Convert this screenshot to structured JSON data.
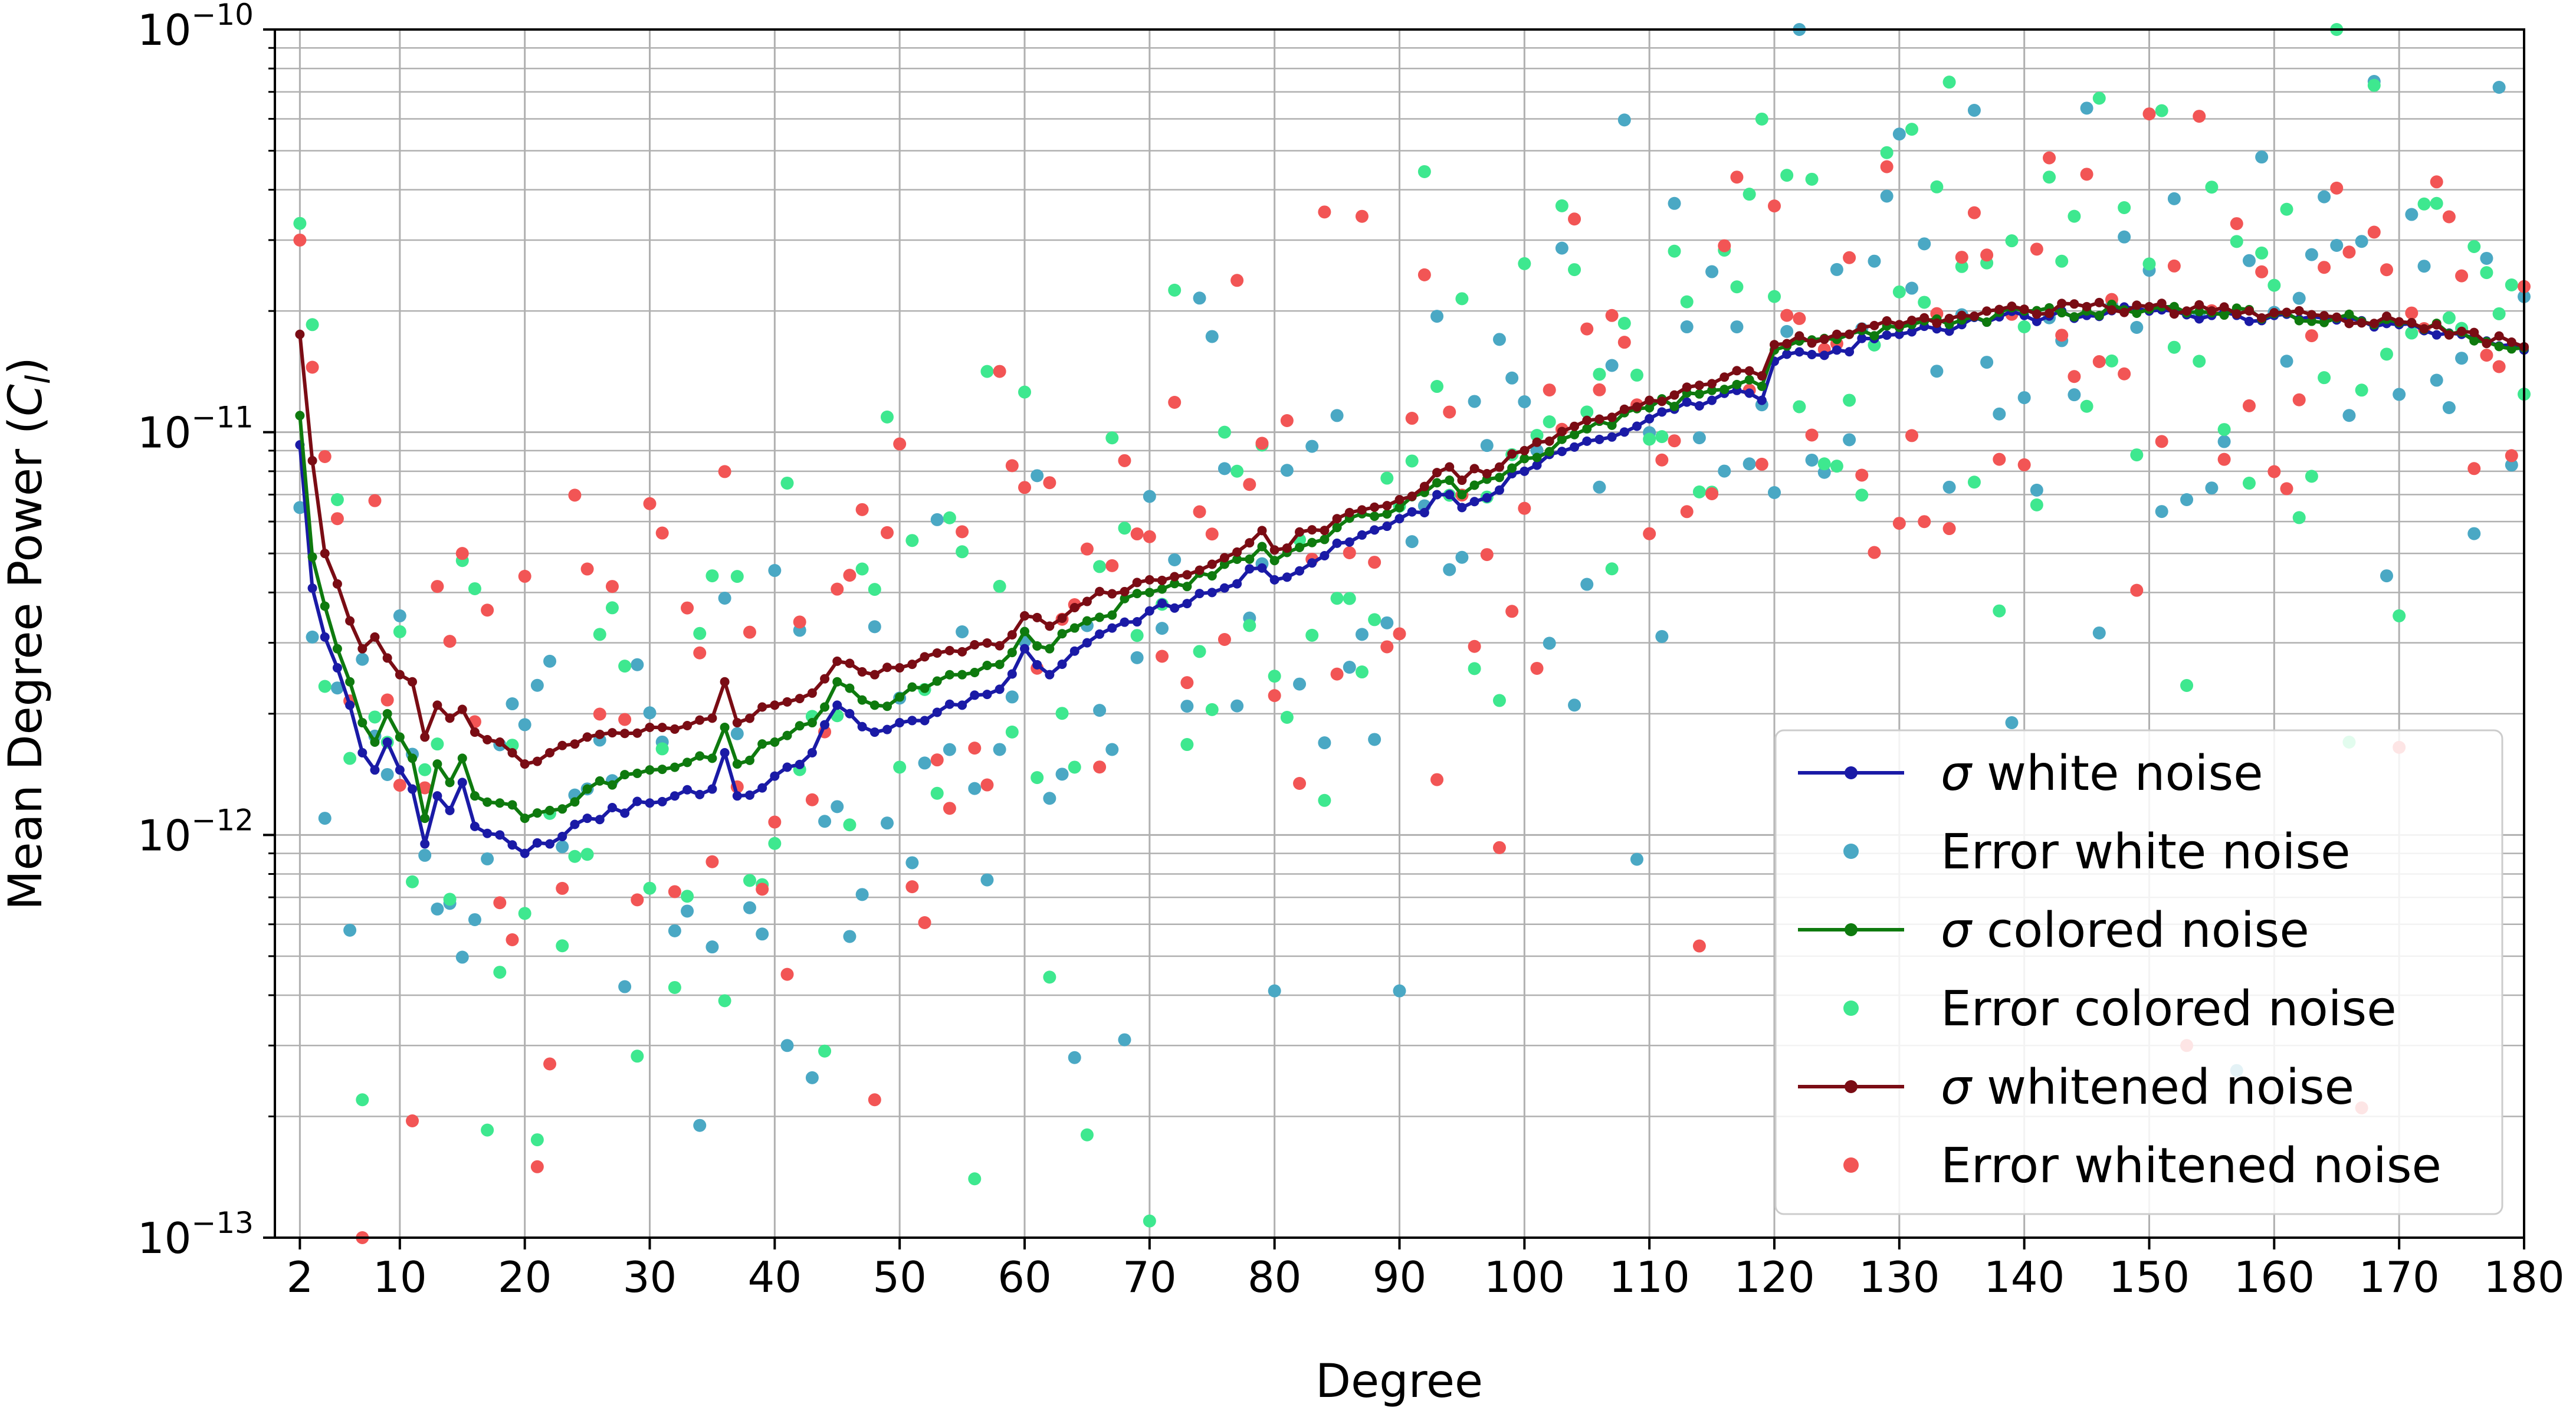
{
  "chart_data": {
    "type": "line",
    "title": "",
    "xlabel": "Degree",
    "ylabel": "Mean Degree Power (C_l)",
    "ylabel_parts": {
      "prefix": "Mean Degree Power (",
      "symbol": "C",
      "subscript": "l",
      "suffix": ")"
    },
    "x_scale": "linear",
    "y_scale": "log",
    "xlim": [
      0,
      180
    ],
    "ylim": [
      1e-13,
      1e-10
    ],
    "x_ticks": [
      2,
      10,
      20,
      30,
      40,
      50,
      60,
      70,
      80,
      90,
      100,
      110,
      120,
      130,
      140,
      150,
      160,
      170,
      180
    ],
    "x_tick_labels": [
      "2",
      "10",
      "20",
      "30",
      "40",
      "50",
      "60",
      "70",
      "80",
      "90",
      "100",
      "110",
      "120",
      "130",
      "140",
      "150",
      "160",
      "170",
      "180"
    ],
    "y_ticks": [
      1e-13,
      1e-12,
      1e-11,
      1e-10
    ],
    "y_tick_labels": [
      {
        "base": "10",
        "exp": "−13"
      },
      {
        "base": "10",
        "exp": "−12"
      },
      {
        "base": "10",
        "exp": "−11"
      },
      {
        "base": "10",
        "exp": "−10"
      }
    ],
    "grid": true,
    "legend_position": "lower-right",
    "degree_range": [
      2,
      180
    ],
    "series": [
      {
        "name": "σ white noise",
        "name_symbol": "σ",
        "name_text": "white noise",
        "kind": "line",
        "color": "#1a1aa6",
        "anchors": [
          [
            2,
            9.3e-12
          ],
          [
            3,
            4.1e-12
          ],
          [
            4,
            3.1e-12
          ],
          [
            5,
            2.6e-12
          ],
          [
            6,
            2.1e-12
          ],
          [
            7,
            1.6e-12
          ],
          [
            8,
            1.45e-12
          ],
          [
            9,
            1.7e-12
          ],
          [
            10,
            1.45e-12
          ],
          [
            11,
            1.3e-12
          ],
          [
            12,
            9.5e-13
          ],
          [
            13,
            1.25e-12
          ],
          [
            14,
            1.15e-12
          ],
          [
            15,
            1.35e-12
          ],
          [
            16,
            1.05e-12
          ],
          [
            18,
            1e-12
          ],
          [
            20,
            9e-13
          ],
          [
            22,
            9.5e-13
          ],
          [
            25,
            1.1e-12
          ],
          [
            30,
            1.2e-12
          ],
          [
            35,
            1.3e-12
          ],
          [
            36,
            1.6e-12
          ],
          [
            37,
            1.25e-12
          ],
          [
            40,
            1.4e-12
          ],
          [
            43,
            1.6e-12
          ],
          [
            45,
            2.1e-12
          ],
          [
            48,
            1.8e-12
          ],
          [
            50,
            1.9e-12
          ],
          [
            55,
            2.1e-12
          ],
          [
            58,
            2.3e-12
          ],
          [
            60,
            2.9e-12
          ],
          [
            62,
            2.5e-12
          ],
          [
            65,
            3e-12
          ],
          [
            70,
            3.6e-12
          ],
          [
            75,
            4e-12
          ],
          [
            79,
            4.6e-12
          ],
          [
            80,
            4.3e-12
          ],
          [
            85,
            5.3e-12
          ],
          [
            90,
            6.1e-12
          ],
          [
            94,
            7e-12
          ],
          [
            95,
            6.5e-12
          ],
          [
            100,
            8e-12
          ],
          [
            105,
            9.5e-12
          ],
          [
            110,
            1.08e-11
          ],
          [
            115,
            1.2e-11
          ],
          [
            118,
            1.25e-11
          ],
          [
            119,
            1.2e-11
          ],
          [
            120,
            1.5e-11
          ],
          [
            125,
            1.6e-11
          ],
          [
            130,
            1.75e-11
          ],
          [
            135,
            1.85e-11
          ],
          [
            140,
            1.95e-11
          ],
          [
            145,
            1.95e-11
          ],
          [
            150,
            2e-11
          ],
          [
            155,
            1.95e-11
          ],
          [
            160,
            1.95e-11
          ],
          [
            165,
            1.9e-11
          ],
          [
            170,
            1.85e-11
          ],
          [
            175,
            1.75e-11
          ],
          [
            180,
            1.6e-11
          ]
        ]
      },
      {
        "name": "Error white noise",
        "kind": "scatter",
        "color": "#4aa8c4",
        "seed": 11,
        "highlights": [
          [
            2,
            6.5e-12
          ],
          [
            3,
            3.1e-12
          ],
          [
            4,
            1.1e-12
          ],
          [
            6,
            5.8e-13
          ],
          [
            10,
            3.5e-12
          ],
          [
            22,
            2.7e-12
          ],
          [
            28,
            4.2e-13
          ],
          [
            34,
            1.9e-13
          ],
          [
            41,
            3e-13
          ],
          [
            61,
            7.8e-12
          ],
          [
            64,
            2.8e-13
          ],
          [
            68,
            3.1e-13
          ],
          [
            80,
            4.1e-13
          ],
          [
            85,
            1.1e-11
          ],
          [
            90,
            4.1e-13
          ],
          [
            98,
            1.7e-11
          ],
          [
            109,
            8.7e-13
          ],
          [
            130,
            5.5e-11
          ],
          [
            136,
            6.3e-11
          ],
          [
            139,
            1.9e-12
          ],
          [
            152,
            3.8e-11
          ],
          [
            153,
            6.8e-12
          ],
          [
            157,
            2.6e-13
          ],
          [
            169,
            4.4e-12
          ],
          [
            176,
            5.6e-12
          ]
        ]
      },
      {
        "name": "σ colored noise",
        "name_symbol": "σ",
        "name_text": "colored noise",
        "kind": "line",
        "color": "#0e7a0e",
        "anchors": [
          [
            2,
            1.1e-11
          ],
          [
            3,
            4.9e-12
          ],
          [
            4,
            3.7e-12
          ],
          [
            5,
            2.9e-12
          ],
          [
            6,
            2.4e-12
          ],
          [
            7,
            1.9e-12
          ],
          [
            8,
            1.7e-12
          ],
          [
            9,
            2e-12
          ],
          [
            10,
            1.75e-12
          ],
          [
            11,
            1.55e-12
          ],
          [
            12,
            1.1e-12
          ],
          [
            13,
            1.5e-12
          ],
          [
            14,
            1.35e-12
          ],
          [
            15,
            1.55e-12
          ],
          [
            16,
            1.25e-12
          ],
          [
            18,
            1.2e-12
          ],
          [
            20,
            1.1e-12
          ],
          [
            22,
            1.15e-12
          ],
          [
            25,
            1.3e-12
          ],
          [
            30,
            1.45e-12
          ],
          [
            35,
            1.55e-12
          ],
          [
            36,
            1.85e-12
          ],
          [
            37,
            1.5e-12
          ],
          [
            40,
            1.7e-12
          ],
          [
            43,
            1.9e-12
          ],
          [
            45,
            2.4e-12
          ],
          [
            48,
            2.1e-12
          ],
          [
            50,
            2.2e-12
          ],
          [
            55,
            2.5e-12
          ],
          [
            58,
            2.65e-12
          ],
          [
            60,
            3.2e-12
          ],
          [
            62,
            2.9e-12
          ],
          [
            65,
            3.4e-12
          ],
          [
            70,
            4e-12
          ],
          [
            75,
            4.4e-12
          ],
          [
            79,
            5.2e-12
          ],
          [
            80,
            4.8e-12
          ],
          [
            85,
            5.8e-12
          ],
          [
            90,
            6.5e-12
          ],
          [
            94,
            7.6e-12
          ],
          [
            95,
            7e-12
          ],
          [
            100,
            8.6e-12
          ],
          [
            105,
            1.02e-11
          ],
          [
            110,
            1.15e-11
          ],
          [
            115,
            1.27e-11
          ],
          [
            118,
            1.35e-11
          ],
          [
            119,
            1.3e-11
          ],
          [
            120,
            1.6e-11
          ],
          [
            125,
            1.7e-11
          ],
          [
            130,
            1.82e-11
          ],
          [
            135,
            1.9e-11
          ],
          [
            140,
            2e-11
          ],
          [
            145,
            2e-11
          ],
          [
            150,
            2.02e-11
          ],
          [
            155,
            1.98e-11
          ],
          [
            160,
            1.97e-11
          ],
          [
            165,
            1.92e-11
          ],
          [
            170,
            1.87e-11
          ],
          [
            175,
            1.77e-11
          ],
          [
            180,
            1.62e-11
          ]
        ]
      },
      {
        "name": "Error colored noise",
        "kind": "scatter",
        "color": "#3ee88f",
        "seed": 23,
        "highlights": [
          [
            2,
            3.3e-11
          ],
          [
            3,
            1.85e-11
          ],
          [
            5,
            6.8e-12
          ],
          [
            7,
            2.2e-13
          ],
          [
            15,
            4.8e-12
          ],
          [
            17,
            1.85e-13
          ],
          [
            21,
            1.75e-13
          ],
          [
            35,
            4.4e-12
          ],
          [
            56,
            1.4e-13
          ],
          [
            65,
            1.8e-13
          ],
          [
            70,
            1.1e-13
          ],
          [
            115,
            7.1e-12
          ],
          [
            118,
            3.9e-11
          ],
          [
            138,
            3.6e-12
          ],
          [
            141,
            6.6e-12
          ],
          [
            142,
            4.3e-11
          ],
          [
            153,
            2.35e-12
          ],
          [
            166,
            1.7e-12
          ],
          [
            170,
            3.5e-12
          ],
          [
            173,
            3.7e-11
          ]
        ]
      },
      {
        "name": "σ whitened noise",
        "name_symbol": "σ",
        "name_text": "whitened noise",
        "kind": "line",
        "color": "#7a0c14",
        "anchors": [
          [
            2,
            1.75e-11
          ],
          [
            3,
            8.5e-12
          ],
          [
            4,
            5e-12
          ],
          [
            5,
            4.2e-12
          ],
          [
            6,
            3.4e-12
          ],
          [
            7,
            2.9e-12
          ],
          [
            8,
            3.1e-12
          ],
          [
            9,
            2.75e-12
          ],
          [
            10,
            2.5e-12
          ],
          [
            11,
            2.4e-12
          ],
          [
            12,
            1.75e-12
          ],
          [
            13,
            2.1e-12
          ],
          [
            14,
            1.95e-12
          ],
          [
            15,
            2.05e-12
          ],
          [
            16,
            1.8e-12
          ],
          [
            18,
            1.7e-12
          ],
          [
            20,
            1.5e-12
          ],
          [
            22,
            1.6e-12
          ],
          [
            25,
            1.75e-12
          ],
          [
            30,
            1.85e-12
          ],
          [
            35,
            1.95e-12
          ],
          [
            36,
            2.4e-12
          ],
          [
            37,
            1.9e-12
          ],
          [
            40,
            2.1e-12
          ],
          [
            43,
            2.25e-12
          ],
          [
            45,
            2.7e-12
          ],
          [
            48,
            2.5e-12
          ],
          [
            50,
            2.6e-12
          ],
          [
            55,
            2.85e-12
          ],
          [
            58,
            2.95e-12
          ],
          [
            60,
            3.5e-12
          ],
          [
            62,
            3.3e-12
          ],
          [
            65,
            3.8e-12
          ],
          [
            70,
            4.3e-12
          ],
          [
            75,
            4.7e-12
          ],
          [
            79,
            5.7e-12
          ],
          [
            80,
            5.1e-12
          ],
          [
            85,
            6.1e-12
          ],
          [
            90,
            6.8e-12
          ],
          [
            94,
            8.2e-12
          ],
          [
            95,
            7.6e-12
          ],
          [
            100,
            9e-12
          ],
          [
            105,
            1.07e-11
          ],
          [
            110,
            1.2e-11
          ],
          [
            115,
            1.32e-11
          ],
          [
            118,
            1.42e-11
          ],
          [
            119,
            1.38e-11
          ],
          [
            120,
            1.65e-11
          ],
          [
            125,
            1.75e-11
          ],
          [
            130,
            1.85e-11
          ],
          [
            135,
            1.95e-11
          ],
          [
            140,
            2.02e-11
          ],
          [
            145,
            2.05e-11
          ],
          [
            150,
            2.05e-11
          ],
          [
            155,
            2e-11
          ],
          [
            160,
            1.98e-11
          ],
          [
            165,
            1.93e-11
          ],
          [
            170,
            1.88e-11
          ],
          [
            175,
            1.78e-11
          ],
          [
            180,
            1.63e-11
          ]
        ]
      },
      {
        "name": "Error whitened noise",
        "kind": "scatter",
        "color": "#f25555",
        "seed": 37,
        "highlights": [
          [
            2,
            3e-11
          ],
          [
            3,
            1.45e-11
          ],
          [
            4,
            8.7e-12
          ],
          [
            5,
            6.1e-12
          ],
          [
            7,
            1e-13
          ],
          [
            11,
            1.95e-13
          ],
          [
            15,
            5e-12
          ],
          [
            21,
            1.5e-13
          ],
          [
            22,
            2.7e-13
          ],
          [
            48,
            2.2e-13
          ],
          [
            68,
            8.5e-12
          ],
          [
            98,
            9.3e-13
          ],
          [
            114,
            5.3e-13
          ],
          [
            117,
            4.3e-11
          ],
          [
            140,
            8.3e-12
          ],
          [
            142,
            4.8e-11
          ],
          [
            153,
            3e-13
          ],
          [
            167,
            2.1e-13
          ],
          [
            170,
            1.65e-12
          ],
          [
            180,
            2.3e-11
          ]
        ]
      }
    ]
  }
}
